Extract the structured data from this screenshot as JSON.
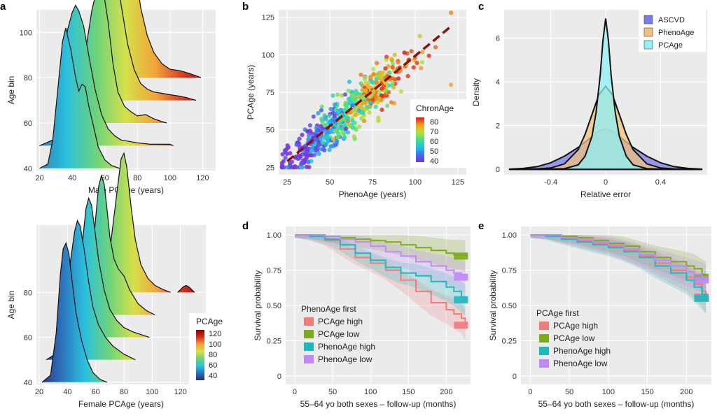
{
  "chart_data": [
    {
      "id": "a-top",
      "panel_label": "a",
      "type": "area",
      "subtype": "ridgeline",
      "xlabel": "Male PCAge (years)",
      "ylabel": "Age bin",
      "xlim": [
        18,
        128
      ],
      "ylim": [
        39,
        110
      ],
      "x_ticks": [
        "20",
        "40",
        "60",
        "80",
        "100",
        "120"
      ],
      "y_ticks": [
        "40",
        "60",
        "80",
        "100"
      ],
      "colormap": [
        "#2c7bb6",
        "#2bc0dd",
        "#6dd37a",
        "#d6e04a",
        "#f2a33a",
        "#d7301f",
        "#8b0000"
      ],
      "series": [
        {
          "bin": 40,
          "x": [
            20,
            25,
            28,
            31,
            34,
            36,
            39,
            42,
            44,
            46,
            48,
            50,
            53,
            56,
            60,
            64,
            69
          ],
          "y": [
            0,
            0.03,
            0.2,
            0.55,
            0.9,
            1.0,
            0.85,
            0.65,
            0.55,
            0.6,
            0.58,
            0.45,
            0.3,
            0.15,
            0.06,
            0.02,
            0
          ]
        },
        {
          "bin": 50,
          "x": [
            20,
            28,
            32,
            35,
            37,
            40,
            42,
            44,
            47,
            50,
            54,
            58,
            62,
            66,
            70,
            75,
            80,
            88,
            100,
            102
          ],
          "y": [
            0,
            0.04,
            0.25,
            0.6,
            0.82,
            0.95,
            1.0,
            0.96,
            0.85,
            0.65,
            0.4,
            0.22,
            0.12,
            0.07,
            0.04,
            0.03,
            0.02,
            0.01,
            0.01,
            0
          ]
        },
        {
          "bin": 60,
          "x": [
            30,
            40,
            44,
            48,
            52,
            55,
            57,
            59,
            62,
            65,
            68,
            72,
            76,
            80,
            85,
            90,
            95,
            98
          ],
          "y": [
            0,
            0.04,
            0.2,
            0.5,
            0.8,
            0.95,
            1.0,
            0.95,
            0.72,
            0.42,
            0.22,
            0.12,
            0.08,
            0.05,
            0.06,
            0.03,
            0.01,
            0
          ]
        },
        {
          "bin": 70,
          "x": [
            40,
            50,
            55,
            58,
            61,
            63,
            65,
            67,
            70,
            74,
            78,
            82,
            86,
            90,
            95,
            100,
            106,
            110,
            116
          ],
          "y": [
            0,
            0.04,
            0.28,
            0.6,
            0.85,
            0.97,
            1.0,
            0.92,
            0.68,
            0.4,
            0.22,
            0.12,
            0.08,
            0.06,
            0.05,
            0.04,
            0.03,
            0.02,
            0
          ]
        },
        {
          "bin": 80,
          "x": [
            50,
            60,
            65,
            68,
            71,
            73,
            75,
            77,
            79,
            82,
            86,
            90,
            95,
            100,
            106,
            112,
            117,
            119
          ],
          "y": [
            0,
            0.04,
            0.3,
            0.66,
            0.92,
            0.98,
            1.0,
            0.94,
            0.75,
            0.5,
            0.3,
            0.18,
            0.1,
            0.06,
            0.05,
            0.03,
            0.01,
            0
          ]
        }
      ]
    },
    {
      "id": "a-bottom",
      "panel_label": "",
      "type": "area",
      "subtype": "ridgeline",
      "xlabel": "Female PCAge (years)",
      "ylabel": "Age bin",
      "xlim": [
        18,
        138
      ],
      "ylim": [
        39,
        110
      ],
      "x_ticks": [
        "20",
        "40",
        "60",
        "80",
        "100",
        "120"
      ],
      "y_ticks": [
        "40",
        "60",
        "80"
      ],
      "legend_title": "PCAge",
      "legend_ticks": [
        "120",
        "100",
        "80",
        "60",
        "40"
      ],
      "legend_position": "bottom-right",
      "colormap": [
        "#2b2d70",
        "#2c6fbb",
        "#2bc0dd",
        "#6dd37a",
        "#d6e04a",
        "#f2a33a",
        "#d7301f",
        "#8b0000"
      ],
      "series": [
        {
          "bin": 40,
          "x": [
            22,
            28,
            32,
            35,
            37,
            39,
            41,
            43,
            46,
            50,
            54,
            58,
            63,
            68
          ],
          "y": [
            0,
            0.05,
            0.35,
            0.78,
            0.96,
            1.0,
            0.92,
            0.75,
            0.5,
            0.3,
            0.16,
            0.07,
            0.02,
            0
          ]
        },
        {
          "bin": 50,
          "x": [
            25,
            33,
            38,
            42,
            45,
            47,
            49,
            52,
            55,
            58,
            62,
            67,
            72,
            80,
            88
          ],
          "y": [
            0,
            0.05,
            0.35,
            0.7,
            0.92,
            1.0,
            0.96,
            0.78,
            0.56,
            0.38,
            0.25,
            0.16,
            0.1,
            0.04,
            0
          ]
        },
        {
          "bin": 60,
          "x": [
            33,
            42,
            47,
            51,
            53,
            55,
            57,
            59,
            62,
            66,
            70,
            75,
            80,
            86,
            92,
            98
          ],
          "y": [
            0,
            0.05,
            0.35,
            0.72,
            0.92,
            1.0,
            0.95,
            0.8,
            0.56,
            0.34,
            0.2,
            0.12,
            0.07,
            0.04,
            0.02,
            0
          ]
        },
        {
          "bin": 70,
          "x": [
            42,
            52,
            57,
            60,
            62,
            64,
            66,
            68,
            70,
            73,
            76,
            80,
            84,
            90,
            96,
            102
          ],
          "y": [
            0,
            0.05,
            0.35,
            0.7,
            0.92,
            1.0,
            0.94,
            0.76,
            0.56,
            0.4,
            0.33,
            0.28,
            0.18,
            0.08,
            0.03,
            0
          ]
        },
        {
          "bin": 80,
          "x": [
            55,
            65,
            70,
            73,
            76,
            78,
            80,
            82,
            85,
            88,
            92,
            97,
            102,
            108,
            113
          ],
          "y": [
            0,
            0.05,
            0.3,
            0.55,
            0.8,
            0.96,
            1.0,
            0.9,
            0.62,
            0.38,
            0.2,
            0.1,
            0.05,
            0.02,
            0
          ]
        },
        {
          "bin": 80,
          "x": [
            118,
            120,
            122,
            124,
            126,
            128,
            130
          ],
          "y": [
            0,
            0.02,
            0.04,
            0.05,
            0.04,
            0.02,
            0
          ]
        }
      ]
    },
    {
      "id": "b",
      "panel_label": "b",
      "type": "scatter",
      "xlabel": "PhenoAge (years)",
      "ylabel": "PCAge (years)",
      "xlim": [
        20,
        130
      ],
      "ylim": [
        20,
        130
      ],
      "x_ticks": [
        "25",
        "50",
        "75",
        "100",
        "125"
      ],
      "y_ticks": [
        "25",
        "50",
        "75",
        "100",
        "125"
      ],
      "legend_title": "ChronAge",
      "legend_ticks": [
        "80",
        "70",
        "60",
        "50",
        "40"
      ],
      "legend_position": "bottom-right",
      "colormap": [
        "#7b2fd6",
        "#3e6ff0",
        "#22c3e6",
        "#3fe08a",
        "#b6e23a",
        "#f6a11d",
        "#d7191c"
      ],
      "point_count": 600,
      "fit_line": {
        "x": [
          25,
          120
        ],
        "y": [
          29,
          118
        ]
      },
      "points_sample": [
        [
          30,
          32,
          35
        ],
        [
          40,
          42,
          42
        ],
        [
          50,
          55,
          50
        ],
        [
          60,
          58,
          58
        ],
        [
          70,
          72,
          65
        ],
        [
          80,
          85,
          72
        ],
        [
          90,
          95,
          78
        ],
        [
          100,
          98,
          80
        ],
        [
          121,
          128,
          78
        ],
        [
          121,
          80,
          75
        ],
        [
          112,
          105,
          80
        ]
      ]
    },
    {
      "id": "c",
      "panel_label": "c",
      "type": "area",
      "subtype": "density",
      "xlabel": "Relative error",
      "ylabel": "Density",
      "xlim": [
        -0.74,
        0.74
      ],
      "ylim": [
        -0.25,
        7.3
      ],
      "x_ticks": [
        "-0.4",
        "0",
        "0.4"
      ],
      "y_ticks": [
        "0",
        "2",
        "4",
        "6"
      ],
      "legend_position": "top-right",
      "series": [
        {
          "name": "ASCVD",
          "color": "#7b7bea",
          "x": [
            -0.7,
            -0.6,
            -0.5,
            -0.4,
            -0.3,
            -0.2,
            -0.15,
            -0.1,
            -0.05,
            0,
            0.05,
            0.1,
            0.15,
            0.2,
            0.3,
            0.4,
            0.5,
            0.6,
            0.7
          ],
          "y": [
            0.01,
            0.04,
            0.12,
            0.3,
            0.6,
            1.0,
            1.25,
            1.5,
            1.75,
            1.85,
            1.75,
            1.5,
            1.25,
            1.0,
            0.6,
            0.3,
            0.12,
            0.04,
            0.01
          ]
        },
        {
          "name": "PhenoAge",
          "color": "#f1c27d",
          "x": [
            -0.7,
            -0.5,
            -0.4,
            -0.3,
            -0.2,
            -0.15,
            -0.1,
            -0.05,
            0,
            0.05,
            0.1,
            0.15,
            0.2,
            0.3,
            0.4,
            0.5,
            0.7
          ],
          "y": [
            0,
            0.02,
            0.06,
            0.25,
            0.9,
            1.6,
            2.5,
            3.4,
            3.8,
            3.4,
            2.5,
            1.6,
            0.9,
            0.25,
            0.06,
            0.02,
            0
          ]
        },
        {
          "name": "PCAge",
          "color": "#8ef0f5",
          "x": [
            -0.7,
            -0.4,
            -0.3,
            -0.2,
            -0.15,
            -0.1,
            -0.07,
            -0.04,
            -0.02,
            0,
            0.02,
            0.04,
            0.07,
            0.1,
            0.15,
            0.2,
            0.3,
            0.4,
            0.7
          ],
          "y": [
            0,
            0.01,
            0.03,
            0.2,
            0.6,
            1.5,
            2.6,
            4.3,
            5.9,
            6.9,
            5.9,
            4.3,
            2.6,
            1.5,
            0.6,
            0.2,
            0.03,
            0.01,
            0
          ]
        }
      ]
    },
    {
      "id": "d",
      "panel_label": "d",
      "type": "line",
      "subtype": "kaplan-meier",
      "xlabel": "55–64 yo both sexes – follow-up (months)",
      "ylabel": "Survival probability",
      "xlim": [
        -12,
        232
      ],
      "ylim": [
        -0.06,
        1.06
      ],
      "x_ticks": [
        "0",
        "50",
        "100",
        "150",
        "200"
      ],
      "y_ticks": [
        "0",
        "0.25",
        "0.50",
        "0.75",
        "1.00"
      ],
      "legend_title": "PhenoAge first",
      "legend_position": "bottom-left",
      "series": [
        {
          "name": "PCAge high",
          "color": "#f07b7b",
          "x": [
            0,
            20,
            40,
            60,
            80,
            100,
            120,
            140,
            160,
            180,
            200,
            210,
            220,
            225
          ],
          "y": [
            1,
            0.99,
            0.96,
            0.9,
            0.84,
            0.8,
            0.75,
            0.68,
            0.6,
            0.52,
            0.47,
            0.44,
            0.41,
            0.36
          ]
        },
        {
          "name": "PCAge low",
          "color": "#7daa1a",
          "x": [
            0,
            20,
            40,
            60,
            80,
            100,
            120,
            140,
            160,
            180,
            200,
            210,
            220,
            225
          ],
          "y": [
            1,
            1,
            0.99,
            0.98,
            0.97,
            0.96,
            0.95,
            0.93,
            0.91,
            0.89,
            0.87,
            0.86,
            0.86,
            0.85
          ]
        },
        {
          "name": "PhenoAge high",
          "color": "#1eb8bf",
          "x": [
            0,
            20,
            40,
            60,
            80,
            100,
            120,
            140,
            160,
            180,
            200,
            210,
            220,
            225
          ],
          "y": [
            1,
            0.99,
            0.97,
            0.93,
            0.87,
            0.82,
            0.77,
            0.73,
            0.71,
            0.67,
            0.63,
            0.6,
            0.56,
            0.54
          ]
        },
        {
          "name": "PhenoAge low",
          "color": "#c08af5",
          "x": [
            0,
            20,
            40,
            60,
            80,
            100,
            120,
            140,
            160,
            180,
            200,
            210,
            220,
            225
          ],
          "y": [
            1,
            1,
            0.99,
            0.97,
            0.95,
            0.92,
            0.88,
            0.85,
            0.81,
            0.78,
            0.75,
            0.73,
            0.71,
            0.7
          ]
        }
      ]
    },
    {
      "id": "e",
      "panel_label": "e",
      "type": "line",
      "subtype": "kaplan-meier",
      "xlabel": "55–64 yo both sexes – follow-up (months)",
      "ylabel": "Survival probability",
      "xlim": [
        -12,
        232
      ],
      "ylim": [
        -0.06,
        1.06
      ],
      "x_ticks": [
        "0",
        "50",
        "100",
        "150",
        "200"
      ],
      "y_ticks": [
        "0",
        "0.25",
        "0.50",
        "0.75",
        "1.00"
      ],
      "legend_title": "PCAge first",
      "legend_position": "bottom-left",
      "series": [
        {
          "name": "PCAge high",
          "color": "#f07b7b",
          "x": [
            0,
            20,
            40,
            60,
            80,
            100,
            120,
            140,
            160,
            180,
            200,
            210,
            220,
            225
          ],
          "y": [
            1,
            1,
            0.98,
            0.96,
            0.94,
            0.92,
            0.89,
            0.85,
            0.8,
            0.75,
            0.7,
            0.65,
            0.6,
            0.56
          ]
        },
        {
          "name": "PCAge low",
          "color": "#7daa1a",
          "x": [
            0,
            20,
            40,
            60,
            80,
            100,
            120,
            140,
            160,
            180,
            200,
            210,
            220,
            225
          ],
          "y": [
            1,
            1,
            0.99,
            0.98,
            0.96,
            0.94,
            0.92,
            0.88,
            0.84,
            0.81,
            0.78,
            0.76,
            0.72,
            0.7
          ]
        },
        {
          "name": "PhenoAge high",
          "color": "#1eb8bf",
          "x": [
            0,
            20,
            40,
            60,
            80,
            100,
            120,
            140,
            160,
            180,
            200,
            210,
            220,
            225
          ],
          "y": [
            1,
            0.99,
            0.97,
            0.95,
            0.93,
            0.91,
            0.88,
            0.84,
            0.78,
            0.73,
            0.68,
            0.63,
            0.58,
            0.55
          ]
        },
        {
          "name": "PhenoAge low",
          "color": "#c08af5",
          "x": [
            0,
            20,
            40,
            60,
            80,
            100,
            120,
            140,
            160,
            180,
            200,
            210,
            220,
            225
          ],
          "y": [
            1,
            1,
            0.98,
            0.97,
            0.95,
            0.93,
            0.9,
            0.86,
            0.82,
            0.78,
            0.74,
            0.72,
            0.7,
            0.68
          ]
        }
      ]
    }
  ]
}
